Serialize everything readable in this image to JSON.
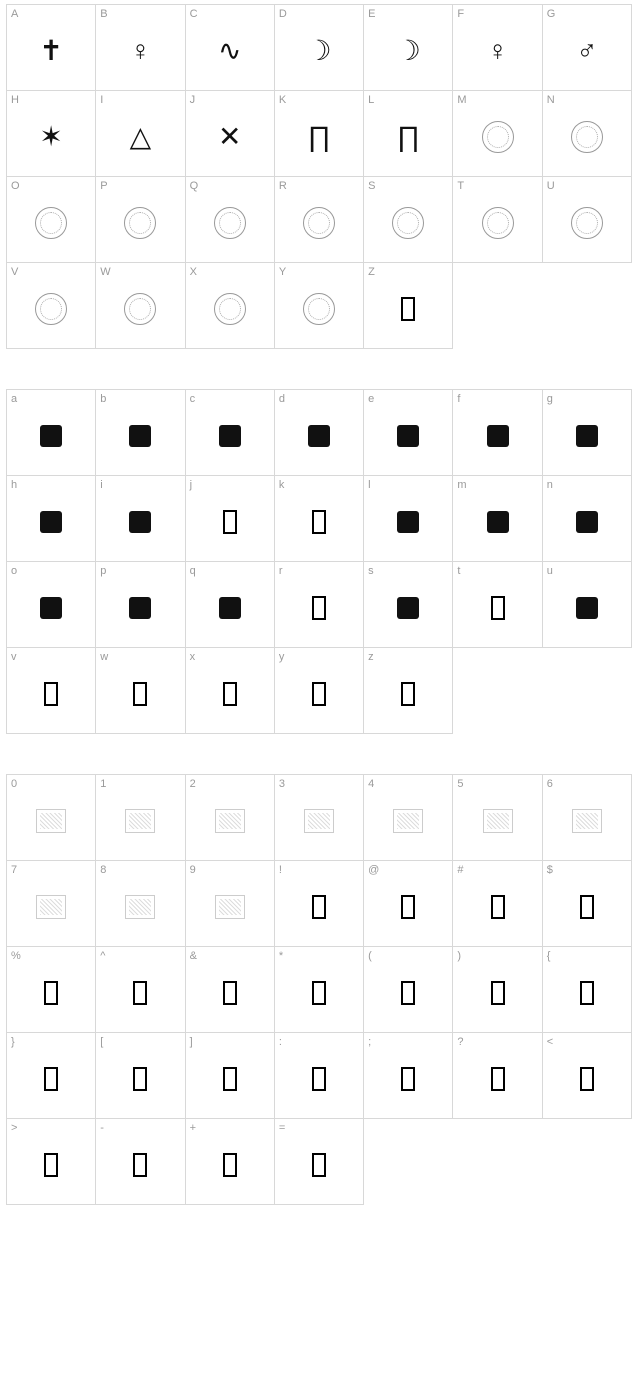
{
  "sections": [
    {
      "id": "upper",
      "cells": [
        {
          "label": "A",
          "glyph": "symbol",
          "sym": "✝"
        },
        {
          "label": "B",
          "glyph": "symbol",
          "sym": "♀"
        },
        {
          "label": "C",
          "glyph": "symbol",
          "sym": "∿"
        },
        {
          "label": "D",
          "glyph": "symbol",
          "sym": "☽"
        },
        {
          "label": "E",
          "glyph": "symbol",
          "sym": "☽"
        },
        {
          "label": "F",
          "glyph": "symbol",
          "sym": "♀"
        },
        {
          "label": "G",
          "glyph": "symbol",
          "sym": "♂"
        },
        {
          "label": "H",
          "glyph": "symbol",
          "sym": "✶"
        },
        {
          "label": "I",
          "glyph": "symbol",
          "sym": "△"
        },
        {
          "label": "J",
          "glyph": "symbol",
          "sym": "✕"
        },
        {
          "label": "K",
          "glyph": "symbol",
          "sym": "∏"
        },
        {
          "label": "L",
          "glyph": "symbol",
          "sym": "∏"
        },
        {
          "label": "M",
          "glyph": "seal"
        },
        {
          "label": "N",
          "glyph": "seal"
        },
        {
          "label": "O",
          "glyph": "seal"
        },
        {
          "label": "P",
          "glyph": "seal"
        },
        {
          "label": "Q",
          "glyph": "seal"
        },
        {
          "label": "R",
          "glyph": "seal"
        },
        {
          "label": "S",
          "glyph": "seal"
        },
        {
          "label": "T",
          "glyph": "seal"
        },
        {
          "label": "U",
          "glyph": "seal"
        },
        {
          "label": "V",
          "glyph": "seal"
        },
        {
          "label": "W",
          "glyph": "seal"
        },
        {
          "label": "X",
          "glyph": "seal"
        },
        {
          "label": "Y",
          "glyph": "seal"
        },
        {
          "label": "Z",
          "glyph": "empty"
        }
      ]
    },
    {
      "id": "lower",
      "cells": [
        {
          "label": "a",
          "glyph": "drop"
        },
        {
          "label": "b",
          "glyph": "drop"
        },
        {
          "label": "c",
          "glyph": "drop"
        },
        {
          "label": "d",
          "glyph": "drop"
        },
        {
          "label": "e",
          "glyph": "drop"
        },
        {
          "label": "f",
          "glyph": "drop"
        },
        {
          "label": "g",
          "glyph": "drop"
        },
        {
          "label": "h",
          "glyph": "drop"
        },
        {
          "label": "i",
          "glyph": "drop"
        },
        {
          "label": "j",
          "glyph": "empty"
        },
        {
          "label": "k",
          "glyph": "empty"
        },
        {
          "label": "l",
          "glyph": "drop"
        },
        {
          "label": "m",
          "glyph": "drop"
        },
        {
          "label": "n",
          "glyph": "drop"
        },
        {
          "label": "o",
          "glyph": "drop"
        },
        {
          "label": "p",
          "glyph": "drop"
        },
        {
          "label": "q",
          "glyph": "drop"
        },
        {
          "label": "r",
          "glyph": "empty"
        },
        {
          "label": "s",
          "glyph": "drop"
        },
        {
          "label": "t",
          "glyph": "empty"
        },
        {
          "label": "u",
          "glyph": "drop"
        },
        {
          "label": "v",
          "glyph": "empty"
        },
        {
          "label": "w",
          "glyph": "empty"
        },
        {
          "label": "x",
          "glyph": "empty"
        },
        {
          "label": "y",
          "glyph": "empty"
        },
        {
          "label": "z",
          "glyph": "empty"
        }
      ]
    },
    {
      "id": "numsym",
      "cells": [
        {
          "label": "0",
          "glyph": "light"
        },
        {
          "label": "1",
          "glyph": "light"
        },
        {
          "label": "2",
          "glyph": "light"
        },
        {
          "label": "3",
          "glyph": "light"
        },
        {
          "label": "4",
          "glyph": "light"
        },
        {
          "label": "5",
          "glyph": "light"
        },
        {
          "label": "6",
          "glyph": "light"
        },
        {
          "label": "7",
          "glyph": "light"
        },
        {
          "label": "8",
          "glyph": "light"
        },
        {
          "label": "9",
          "glyph": "light"
        },
        {
          "label": "!",
          "glyph": "empty"
        },
        {
          "label": "@",
          "glyph": "empty"
        },
        {
          "label": "#",
          "glyph": "empty"
        },
        {
          "label": "$",
          "glyph": "empty"
        },
        {
          "label": "%",
          "glyph": "empty"
        },
        {
          "label": "^",
          "glyph": "empty"
        },
        {
          "label": "&",
          "glyph": "empty"
        },
        {
          "label": "*",
          "glyph": "empty"
        },
        {
          "label": "(",
          "glyph": "empty"
        },
        {
          "label": ")",
          "glyph": "empty"
        },
        {
          "label": "{",
          "glyph": "empty"
        },
        {
          "label": "}",
          "glyph": "empty"
        },
        {
          "label": "[",
          "glyph": "empty"
        },
        {
          "label": "]",
          "glyph": "empty"
        },
        {
          "label": ":",
          "glyph": "empty"
        },
        {
          "label": ";",
          "glyph": "empty"
        },
        {
          "label": "?",
          "glyph": "empty"
        },
        {
          "label": "<",
          "glyph": "empty"
        },
        {
          "label": ">",
          "glyph": "empty"
        },
        {
          "label": "-",
          "glyph": "empty"
        },
        {
          "label": "+",
          "glyph": "empty"
        },
        {
          "label": "=",
          "glyph": "empty"
        }
      ]
    }
  ]
}
